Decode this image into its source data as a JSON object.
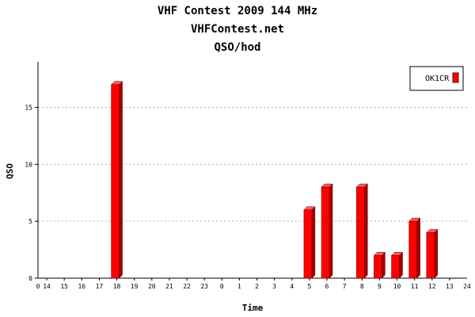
{
  "titles": [
    "VHF Contest 2009 144 MHz",
    "VHFContest.net",
    "QSO/hod"
  ],
  "chart_data": {
    "type": "bar",
    "title": "VHF Contest 2009 144 MHz",
    "subtitle": [
      "VHFContest.net",
      "QSO/hod"
    ],
    "xlabel": "Time",
    "ylabel": "QSO",
    "ylim": [
      0,
      19
    ],
    "yticks": [
      0,
      5,
      10,
      15
    ],
    "grid": "horizontal dashed",
    "legend": "top-right",
    "x_start_label": "0",
    "x_end_label": "24",
    "categories": [
      "14",
      "15",
      "16",
      "17",
      "18",
      "19",
      "20",
      "21",
      "22",
      "23",
      "0",
      "1",
      "2",
      "3",
      "4",
      "5",
      "6",
      "7",
      "8",
      "9",
      "10",
      "11",
      "12",
      "13"
    ],
    "series": [
      {
        "name": "OK1CR",
        "color": "#ff0000",
        "values": [
          0,
          0,
          0,
          0,
          17,
          0,
          0,
          0,
          0,
          0,
          0,
          0,
          0,
          0,
          0,
          6,
          8,
          0,
          8,
          2,
          2,
          5,
          4,
          0
        ]
      }
    ]
  }
}
